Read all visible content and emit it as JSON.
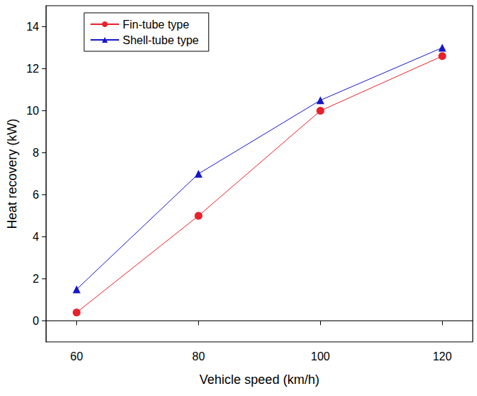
{
  "chart_data": {
    "type": "line",
    "x_label": "Vehicle speed (km/h)",
    "y_label": "Heat recovery (kW)",
    "x": [
      60,
      80,
      100,
      120
    ],
    "series": [
      {
        "name": "Fin-tube type",
        "color": "#e8212b",
        "marker": "circle",
        "values": [
          0.4,
          5,
          10,
          12.6
        ]
      },
      {
        "name": "Shell-tube type",
        "color": "#1616c8",
        "marker": "triangle",
        "values": [
          1.5,
          7,
          10.5,
          13
        ]
      }
    ],
    "xlim": [
      55,
      125
    ],
    "xticks": [
      60,
      80,
      100,
      120
    ],
    "ylim": [
      -1,
      15
    ],
    "yticks": [
      0,
      2,
      4,
      6,
      8,
      10,
      12,
      14
    ],
    "grid": false,
    "legend": "upper left"
  }
}
